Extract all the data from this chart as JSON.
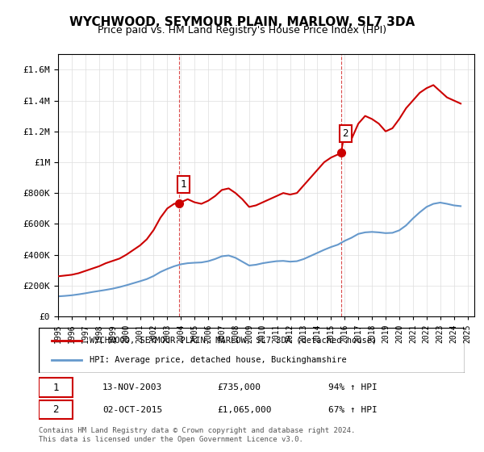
{
  "title": "WYCHWOOD, SEYMOUR PLAIN, MARLOW, SL7 3DA",
  "subtitle": "Price paid vs. HM Land Registry's House Price Index (HPI)",
  "legend_line1": "WYCHWOOD, SEYMOUR PLAIN, MARLOW, SL7 3DA (detached house)",
  "legend_line2": "HPI: Average price, detached house, Buckinghamshire",
  "footnote": "Contains HM Land Registry data © Crown copyright and database right 2024.\nThis data is licensed under the Open Government Licence v3.0.",
  "point1_date": "13-NOV-2003",
  "point1_price": "£735,000",
  "point1_hpi": "94% ↑ HPI",
  "point1_x": 2003.87,
  "point1_y": 735000,
  "point2_date": "02-OCT-2015",
  "point2_price": "£1,065,000",
  "point2_hpi": "67% ↑ HPI",
  "point2_x": 2015.75,
  "point2_y": 1065000,
  "red_color": "#cc0000",
  "blue_color": "#6699cc",
  "dashed_red": "#cc0000",
  "ylim": [
    0,
    1700000
  ],
  "xlim_start": 1995.0,
  "xlim_end": 2025.5,
  "red_x": [
    1995.0,
    1995.5,
    1996.0,
    1996.5,
    1997.0,
    1997.5,
    1998.0,
    1998.5,
    1999.0,
    1999.5,
    2000.0,
    2000.5,
    2001.0,
    2001.5,
    2002.0,
    2002.5,
    2003.0,
    2003.5,
    2003.87,
    2004.5,
    2005.0,
    2005.5,
    2006.0,
    2006.5,
    2007.0,
    2007.5,
    2008.0,
    2008.5,
    2009.0,
    2009.5,
    2010.0,
    2010.5,
    2011.0,
    2011.5,
    2012.0,
    2012.5,
    2013.0,
    2013.5,
    2014.0,
    2014.5,
    2015.0,
    2015.5,
    2015.75,
    2016.0,
    2016.5,
    2017.0,
    2017.5,
    2018.0,
    2018.5,
    2019.0,
    2019.5,
    2020.0,
    2020.5,
    2021.0,
    2021.5,
    2022.0,
    2022.5,
    2023.0,
    2023.5,
    2024.0,
    2024.5
  ],
  "red_y": [
    260000,
    265000,
    270000,
    280000,
    295000,
    310000,
    325000,
    345000,
    360000,
    375000,
    400000,
    430000,
    460000,
    500000,
    560000,
    640000,
    700000,
    730000,
    735000,
    760000,
    740000,
    730000,
    750000,
    780000,
    820000,
    830000,
    800000,
    760000,
    710000,
    720000,
    740000,
    760000,
    780000,
    800000,
    790000,
    800000,
    850000,
    900000,
    950000,
    1000000,
    1030000,
    1050000,
    1065000,
    1200000,
    1150000,
    1250000,
    1300000,
    1280000,
    1250000,
    1200000,
    1220000,
    1280000,
    1350000,
    1400000,
    1450000,
    1480000,
    1500000,
    1460000,
    1420000,
    1400000,
    1380000
  ],
  "blue_x": [
    1995.0,
    1995.5,
    1996.0,
    1996.5,
    1997.0,
    1997.5,
    1998.0,
    1998.5,
    1999.0,
    1999.5,
    2000.0,
    2000.5,
    2001.0,
    2001.5,
    2002.0,
    2002.5,
    2003.0,
    2003.5,
    2004.0,
    2004.5,
    2005.0,
    2005.5,
    2006.0,
    2006.5,
    2007.0,
    2007.5,
    2008.0,
    2008.5,
    2009.0,
    2009.5,
    2010.0,
    2010.5,
    2011.0,
    2011.5,
    2012.0,
    2012.5,
    2013.0,
    2013.5,
    2014.0,
    2014.5,
    2015.0,
    2015.5,
    2016.0,
    2016.5,
    2017.0,
    2017.5,
    2018.0,
    2018.5,
    2019.0,
    2019.5,
    2020.0,
    2020.5,
    2021.0,
    2021.5,
    2022.0,
    2022.5,
    2023.0,
    2023.5,
    2024.0,
    2024.5
  ],
  "blue_y": [
    130000,
    133000,
    137000,
    143000,
    150000,
    158000,
    165000,
    172000,
    180000,
    190000,
    202000,
    215000,
    228000,
    242000,
    262000,
    288000,
    308000,
    325000,
    338000,
    345000,
    348000,
    350000,
    358000,
    372000,
    390000,
    395000,
    380000,
    355000,
    330000,
    335000,
    345000,
    352000,
    358000,
    360000,
    355000,
    358000,
    372000,
    392000,
    412000,
    432000,
    450000,
    465000,
    490000,
    510000,
    535000,
    545000,
    548000,
    545000,
    540000,
    542000,
    558000,
    590000,
    635000,
    675000,
    710000,
    730000,
    738000,
    730000,
    720000,
    715000
  ]
}
